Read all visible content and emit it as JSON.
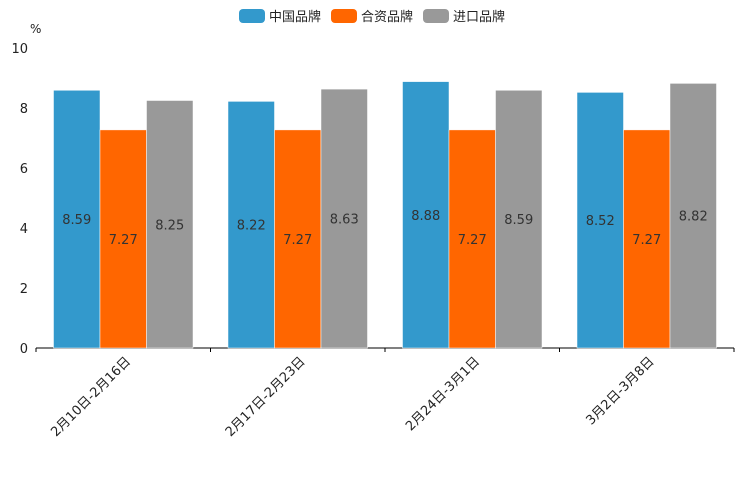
{
  "chart_data": {
    "type": "bar",
    "title": "",
    "ylabel": "%",
    "xlabel": "",
    "ylim": [
      0,
      10
    ],
    "yticks": [
      0,
      2,
      4,
      6,
      8,
      10
    ],
    "categories": [
      "2月10日-2月16日",
      "2月17日-2月23日",
      "2月24日-3月1日",
      "3月2日-3月8日"
    ],
    "series": [
      {
        "name": "中国品牌",
        "color": "#3399CC",
        "values": [
          8.59,
          8.22,
          8.88,
          8.52
        ]
      },
      {
        "name": "合资品牌",
        "color": "#FF6600",
        "values": [
          7.27,
          7.27,
          7.27,
          7.27
        ]
      },
      {
        "name": "进口品牌",
        "color": "#999999",
        "values": [
          8.25,
          8.63,
          8.59,
          8.82
        ]
      }
    ],
    "legend": "top-center",
    "grid": false
  }
}
